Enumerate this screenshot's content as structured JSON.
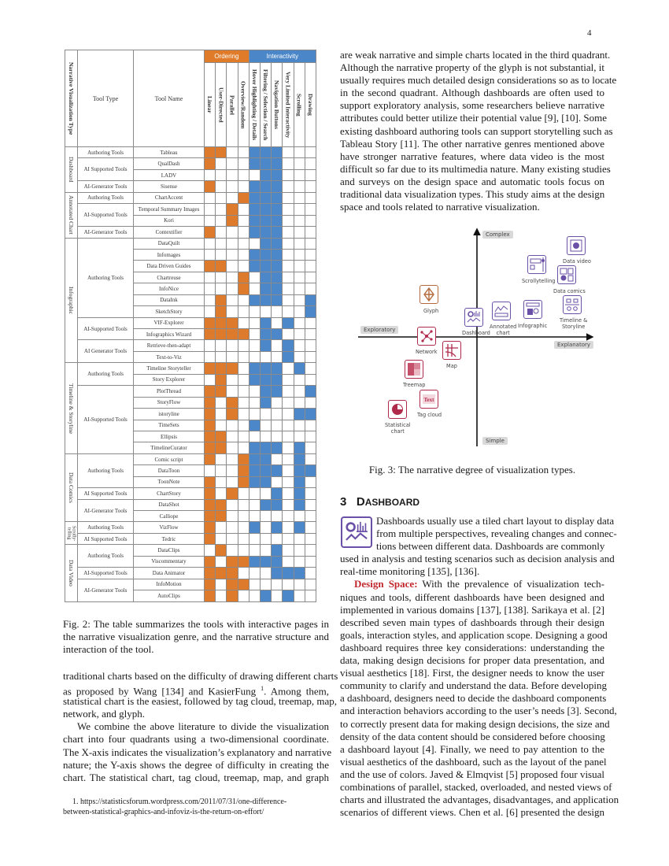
{
  "page_number": "4",
  "table": {
    "head": {
      "type_col": "Narrative Visualization Type",
      "tool_type": "Tool Type",
      "tool_name": "Tool Name",
      "ordering": "Ordering",
      "interactivity": "Interactivity",
      "columns": [
        "Linear",
        "User-Directed",
        "Parallel",
        "Overview/Random",
        "Hover Highlighting / Details",
        "Filtering / Selection / Search",
        "Navigation Buttons",
        "Very Limited Interactivity",
        "Scrolling",
        "Drawing"
      ]
    },
    "colors": {
      "ordering": "#de7a2c",
      "interactivity": "#4b87c9"
    },
    "groups": [
      {
        "name": "Dashboard",
        "subs": [
          {
            "type": "Authoring Tools",
            "tools": [
              {
                "name": "Tableau",
                "marks": "1100111000"
              }
            ]
          },
          {
            "type": "AI Supported Tools",
            "tools": [
              {
                "name": "QualDash",
                "marks": "1000111000"
              },
              {
                "name": "LADV",
                "marks": "0000011000"
              }
            ]
          },
          {
            "type": "AI-Generator Tools",
            "tools": [
              {
                "name": "Sisense",
                "marks": "1000111000"
              }
            ]
          }
        ]
      },
      {
        "name": "Annotated Chart",
        "subs": [
          {
            "type": "Authoring Tools",
            "tools": [
              {
                "name": "ChartAccent",
                "marks": "0001111000"
              }
            ]
          },
          {
            "type": "AI-Supported Tools",
            "tools": [
              {
                "name": "Temporal Summary Images",
                "marks": "0010111000"
              },
              {
                "name": "Kori",
                "marks": "0010111000"
              }
            ]
          },
          {
            "type": "AI-Generator Tools",
            "tools": [
              {
                "name": "Contextifier",
                "marks": "1000111000"
              }
            ]
          }
        ]
      },
      {
        "name": "Infographic",
        "subs": [
          {
            "type": "Authoring Tools",
            "tools": [
              {
                "name": "DataQuilt",
                "marks": "0000011000"
              },
              {
                "name": "Infomages",
                "marks": "0000111000"
              },
              {
                "name": "Data Driven Guides",
                "marks": "1100111000"
              },
              {
                "name": "Chartreuse",
                "marks": "0001011000"
              },
              {
                "name": "InfoNice",
                "marks": "0001011000"
              },
              {
                "name": "DataInk",
                "marks": "0100111001"
              },
              {
                "name": "SketchStory",
                "marks": "0100000001"
              }
            ]
          },
          {
            "type": "AI-Supported Tools",
            "tools": [
              {
                "name": "VIF-Explorer",
                "marks": "1110010100"
              },
              {
                "name": "Infographics Wizard",
                "marks": "1111011000"
              }
            ]
          },
          {
            "type": "AI Generator Tools",
            "tools": [
              {
                "name": "Retrieve-then-adapt",
                "marks": "0000010100"
              },
              {
                "name": "Text-to-Viz",
                "marks": "0000000100"
              }
            ]
          }
        ]
      },
      {
        "name": "Timeline & Storyline",
        "subs": [
          {
            "type": "Authoring Tools",
            "tools": [
              {
                "name": "Timeline Storyteller",
                "marks": "1110111010"
              },
              {
                "name": "Story Explorer",
                "marks": "0100111000"
              }
            ]
          },
          {
            "type": "AI-Supported Tools",
            "tools": [
              {
                "name": "PlotThread",
                "marks": "1100011001"
              },
              {
                "name": "StoryFlow",
                "marks": "1010010000"
              },
              {
                "name": "istoryline",
                "marks": "1010000011"
              },
              {
                "name": "TimeSets",
                "marks": "1000100000"
              },
              {
                "name": "Ellipsis",
                "marks": "1100000000"
              },
              {
                "name": "TimelineCurator",
                "marks": "1100111010"
              }
            ]
          }
        ]
      },
      {
        "name": "Data Comics",
        "subs": [
          {
            "type": "Authoring Tools",
            "tools": [
              {
                "name": "Comic script",
                "marks": "1001110010"
              },
              {
                "name": "DataToon",
                "marks": "0001111011"
              },
              {
                "name": "ToonNote",
                "marks": "1001110010"
              }
            ]
          },
          {
            "type": "AI Supported Tools",
            "tools": [
              {
                "name": "ChartStory",
                "marks": "1010001010"
              }
            ]
          },
          {
            "type": "AI-Generator Tools",
            "tools": [
              {
                "name": "DataShot",
                "marks": "1100011010"
              },
              {
                "name": "Calliope",
                "marks": "1100000000"
              }
            ]
          }
        ]
      },
      {
        "name": "Scrolly-telling",
        "subs": [
          {
            "type": "Authoring Tools",
            "tools": [
              {
                "name": "VizFlow",
                "marks": "1000101010"
              }
            ]
          },
          {
            "type": "AI Supported Tools",
            "tools": [
              {
                "name": "Tedric",
                "marks": "1000000000"
              }
            ]
          }
        ]
      },
      {
        "name": "Data Video",
        "subs": [
          {
            "type": "Authoring Tools",
            "tools": [
              {
                "name": "DataClips",
                "marks": "0100001000"
              },
              {
                "name": "Viscommentary",
                "marks": "1011111000"
              }
            ]
          },
          {
            "type": "AI-Supported Tools",
            "tools": [
              {
                "name": "Data Animator",
                "marks": "1110001110"
              }
            ]
          },
          {
            "type": "AI-Generator Tools",
            "tools": [
              {
                "name": "InfoMotion",
                "marks": "1011000000"
              },
              {
                "name": "AutoClips",
                "marks": "1010010100"
              }
            ]
          }
        ]
      }
    ]
  },
  "fig2_caption": [
    "Fig. 2: The table summarizes the tools with interactive pages in",
    "the narrative visualization genre, and the narrative structure and",
    "interaction of the tool."
  ],
  "left_para": {
    "l1": "traditional charts based on the difficulty of drawing different charts",
    "l2a": "as proposed by Wang [134] and KasierFung ",
    "l2sup": "1",
    "l2b": ". Among them,",
    "l3": "statistical chart is the easiest, followed by tag cloud, treemap, map,",
    "l4": "network, and glyph.",
    "p2": [
      "We combine the above literature to divide the visualization",
      "chart into four quadrants using a two-dimensional coordinate.",
      "The X-axis indicates the visualization’s explanatory and narrative",
      "nature; the Y-axis shows the degree of difficulty in creating the",
      "chart. The statistical chart, tag cloud, treemap, map, and graph"
    ]
  },
  "footnote": [
    "1. https://statisticsforum.wordpress.com/2011/07/31/one-difference-",
    "between-statistical-graphics-and-infoviz-is-the-return-on-effort/"
  ],
  "right_para": [
    "are weak narrative and simple charts located in the third quadrant.",
    "Although the narrative property of the glyph is not substantial, it",
    "usually requires much detailed design considerations so as to locate",
    "in the second quadrant. Although dashboards are often used to",
    "support exploratory analysis, some researchers believe narrative",
    "attributes could better utilize their potential value [9], [10]. Some",
    "existing dashboard authoring tools can support storytelling such as",
    "Tableau Story [11]. The other narrative genres mentioned above",
    "have stronger narrative features, where data video is the most",
    "difficult so far due to its multimedia nature. Many existing studies",
    "and surveys on the design space and automatic tools focus on",
    "traditional data visualization types. This study aims at the design",
    "space and tools related to narrative visualization."
  ],
  "fig3": {
    "axes": {
      "top": "Complex",
      "bottom": "Simple",
      "left": "Exploratory",
      "right": "Explanatory"
    },
    "items": {
      "data_video": "Data video",
      "scrollytelling": "Scrollytelling",
      "data_comics": "Data comics",
      "timeline": "Timeline &",
      "timeline2": "Storyline",
      "infographic": "Infographic",
      "annotated": "Annotated",
      "annotated2": "chart",
      "dashboard": "Dashboard",
      "glyph": "Glyph",
      "network": "Network",
      "map": "Map",
      "treemap": "Treemap",
      "tag_cloud": "Tag cloud",
      "statistical": "Statistical",
      "statistical2": "chart",
      "tag_text": "Text"
    },
    "colors": {
      "explanatory": "#6a50a7",
      "exploratory": "#b02a4c",
      "glyph": "#b36a3c"
    },
    "caption": "Fig. 3: The narrative degree of visualization types."
  },
  "section": {
    "number": "3",
    "title_first": "D",
    "title_rest": "ASHBOARD"
  },
  "dash_para": [
    "Dashboards usually use a tiled chart layout to display data",
    "from multiple perspectives, revealing changes and connec-",
    "tions between different data. Dashboards are commonly",
    "used in analysis and testing scenarios such as decision analysis and",
    "real-time monitoring [135], [136]."
  ],
  "design_space": {
    "label": "Design Space:",
    "first": " With the prevalence of visualization tech-",
    "lines": [
      "niques and tools, different dashboards have been designed and",
      "implemented in various domains [137], [138]. Sarikaya et al. [2]",
      "described seven main types of dashboards through their design",
      "goals, interaction styles, and application scope. Designing a good",
      "dashboard requires three key considerations: understanding the",
      "data, making design decisions for proper data presentation, and",
      "visual aesthetics [18]. First, the designer needs to know the user",
      "community to clarify and understand the data. Before developing",
      "a dashboard, designers need to decide the dashboard components",
      "and interaction behaviors according to the user’s needs [3]. Second,",
      "to correctly present data for making design decisions, the size and",
      "density of the data content should be considered before choosing",
      "a dashboard layout [4]. Finally, we need to pay attention to the",
      "visual aesthetics of the dashboard, such as the layout of the panel",
      "and the use of colors. Javed & Elmqvist [5] proposed four visual",
      "combinations of parallel, stacked, overloaded, and nested views of",
      "charts and illustrated the advantages, disadvantages, and application",
      "scenarios of different views. Chen et al. [6] presented the design"
    ]
  }
}
